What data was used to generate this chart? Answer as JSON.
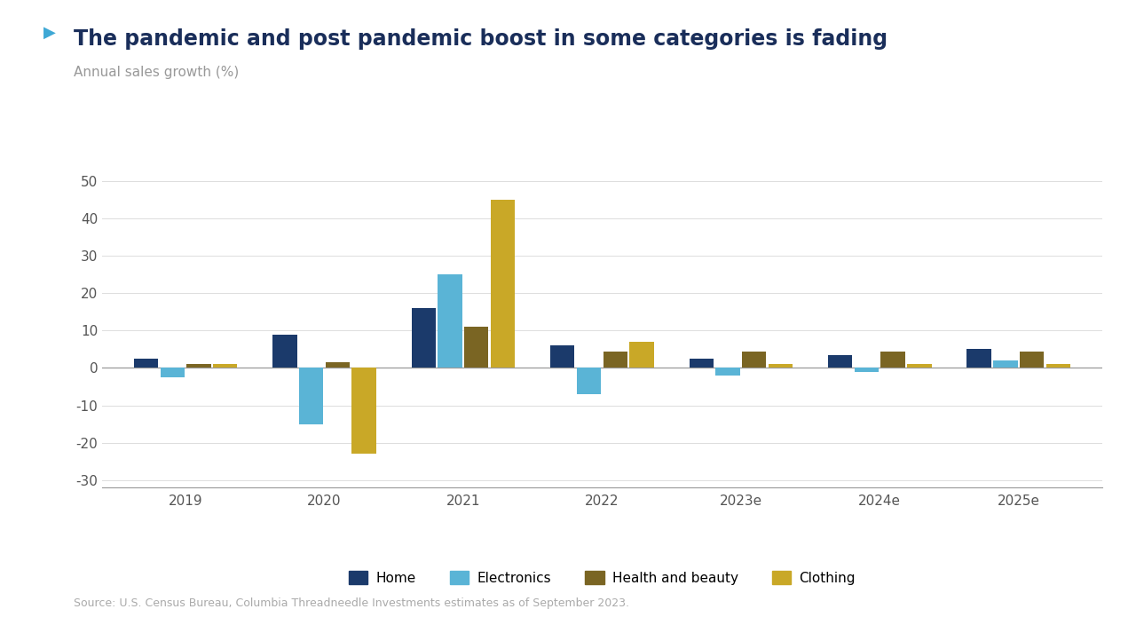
{
  "title": "The pandemic and post pandemic boost in some categories is fading",
  "subtitle": "Annual sales growth (%)",
  "source": "Source: U.S. Census Bureau, Columbia Threadneedle Investments estimates as of September 2023.",
  "years": [
    "2019",
    "2020",
    "2021",
    "2022",
    "2023e",
    "2024e",
    "2025e"
  ],
  "categories": [
    "Home",
    "Electronics",
    "Health and beauty",
    "Clothing"
  ],
  "colors": [
    "#1b3a6b",
    "#5ab4d6",
    "#7a6523",
    "#c9a827"
  ],
  "data": {
    "Home": [
      2.5,
      9.0,
      16.0,
      6.0,
      2.5,
      3.5,
      5.0
    ],
    "Electronics": [
      -2.5,
      -15.0,
      25.0,
      -7.0,
      -2.0,
      -1.0,
      2.0
    ],
    "Health and beauty": [
      1.0,
      1.5,
      11.0,
      4.5,
      4.5,
      4.5,
      4.5
    ],
    "Clothing": [
      1.0,
      -23.0,
      45.0,
      7.0,
      1.0,
      1.0,
      1.0
    ]
  },
  "ylim": [
    -32,
    55
  ],
  "yticks": [
    -30,
    -20,
    -10,
    0,
    10,
    20,
    30,
    40,
    50
  ],
  "background_color": "#ffffff",
  "title_color": "#1a2e5a",
  "subtitle_color": "#999999",
  "accent_color": "#3ea8d5",
  "bar_width": 0.19,
  "title_fontsize": 17,
  "subtitle_fontsize": 11,
  "legend_fontsize": 11,
  "tick_fontsize": 11,
  "source_fontsize": 9
}
